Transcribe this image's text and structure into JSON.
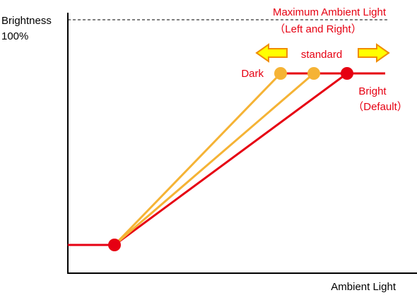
{
  "diagram": {
    "y_axis": {
      "label": "Brightness",
      "max_label": "100%"
    },
    "x_axis": {
      "label": "Ambient Light"
    },
    "annotation": {
      "title": "Maximum Ambient Light",
      "subtitle": "（Left and Right）"
    },
    "points": {
      "standard": "standard",
      "dark": "Dark",
      "bright": "Bright",
      "bright_note": "（Default）"
    }
  }
}
